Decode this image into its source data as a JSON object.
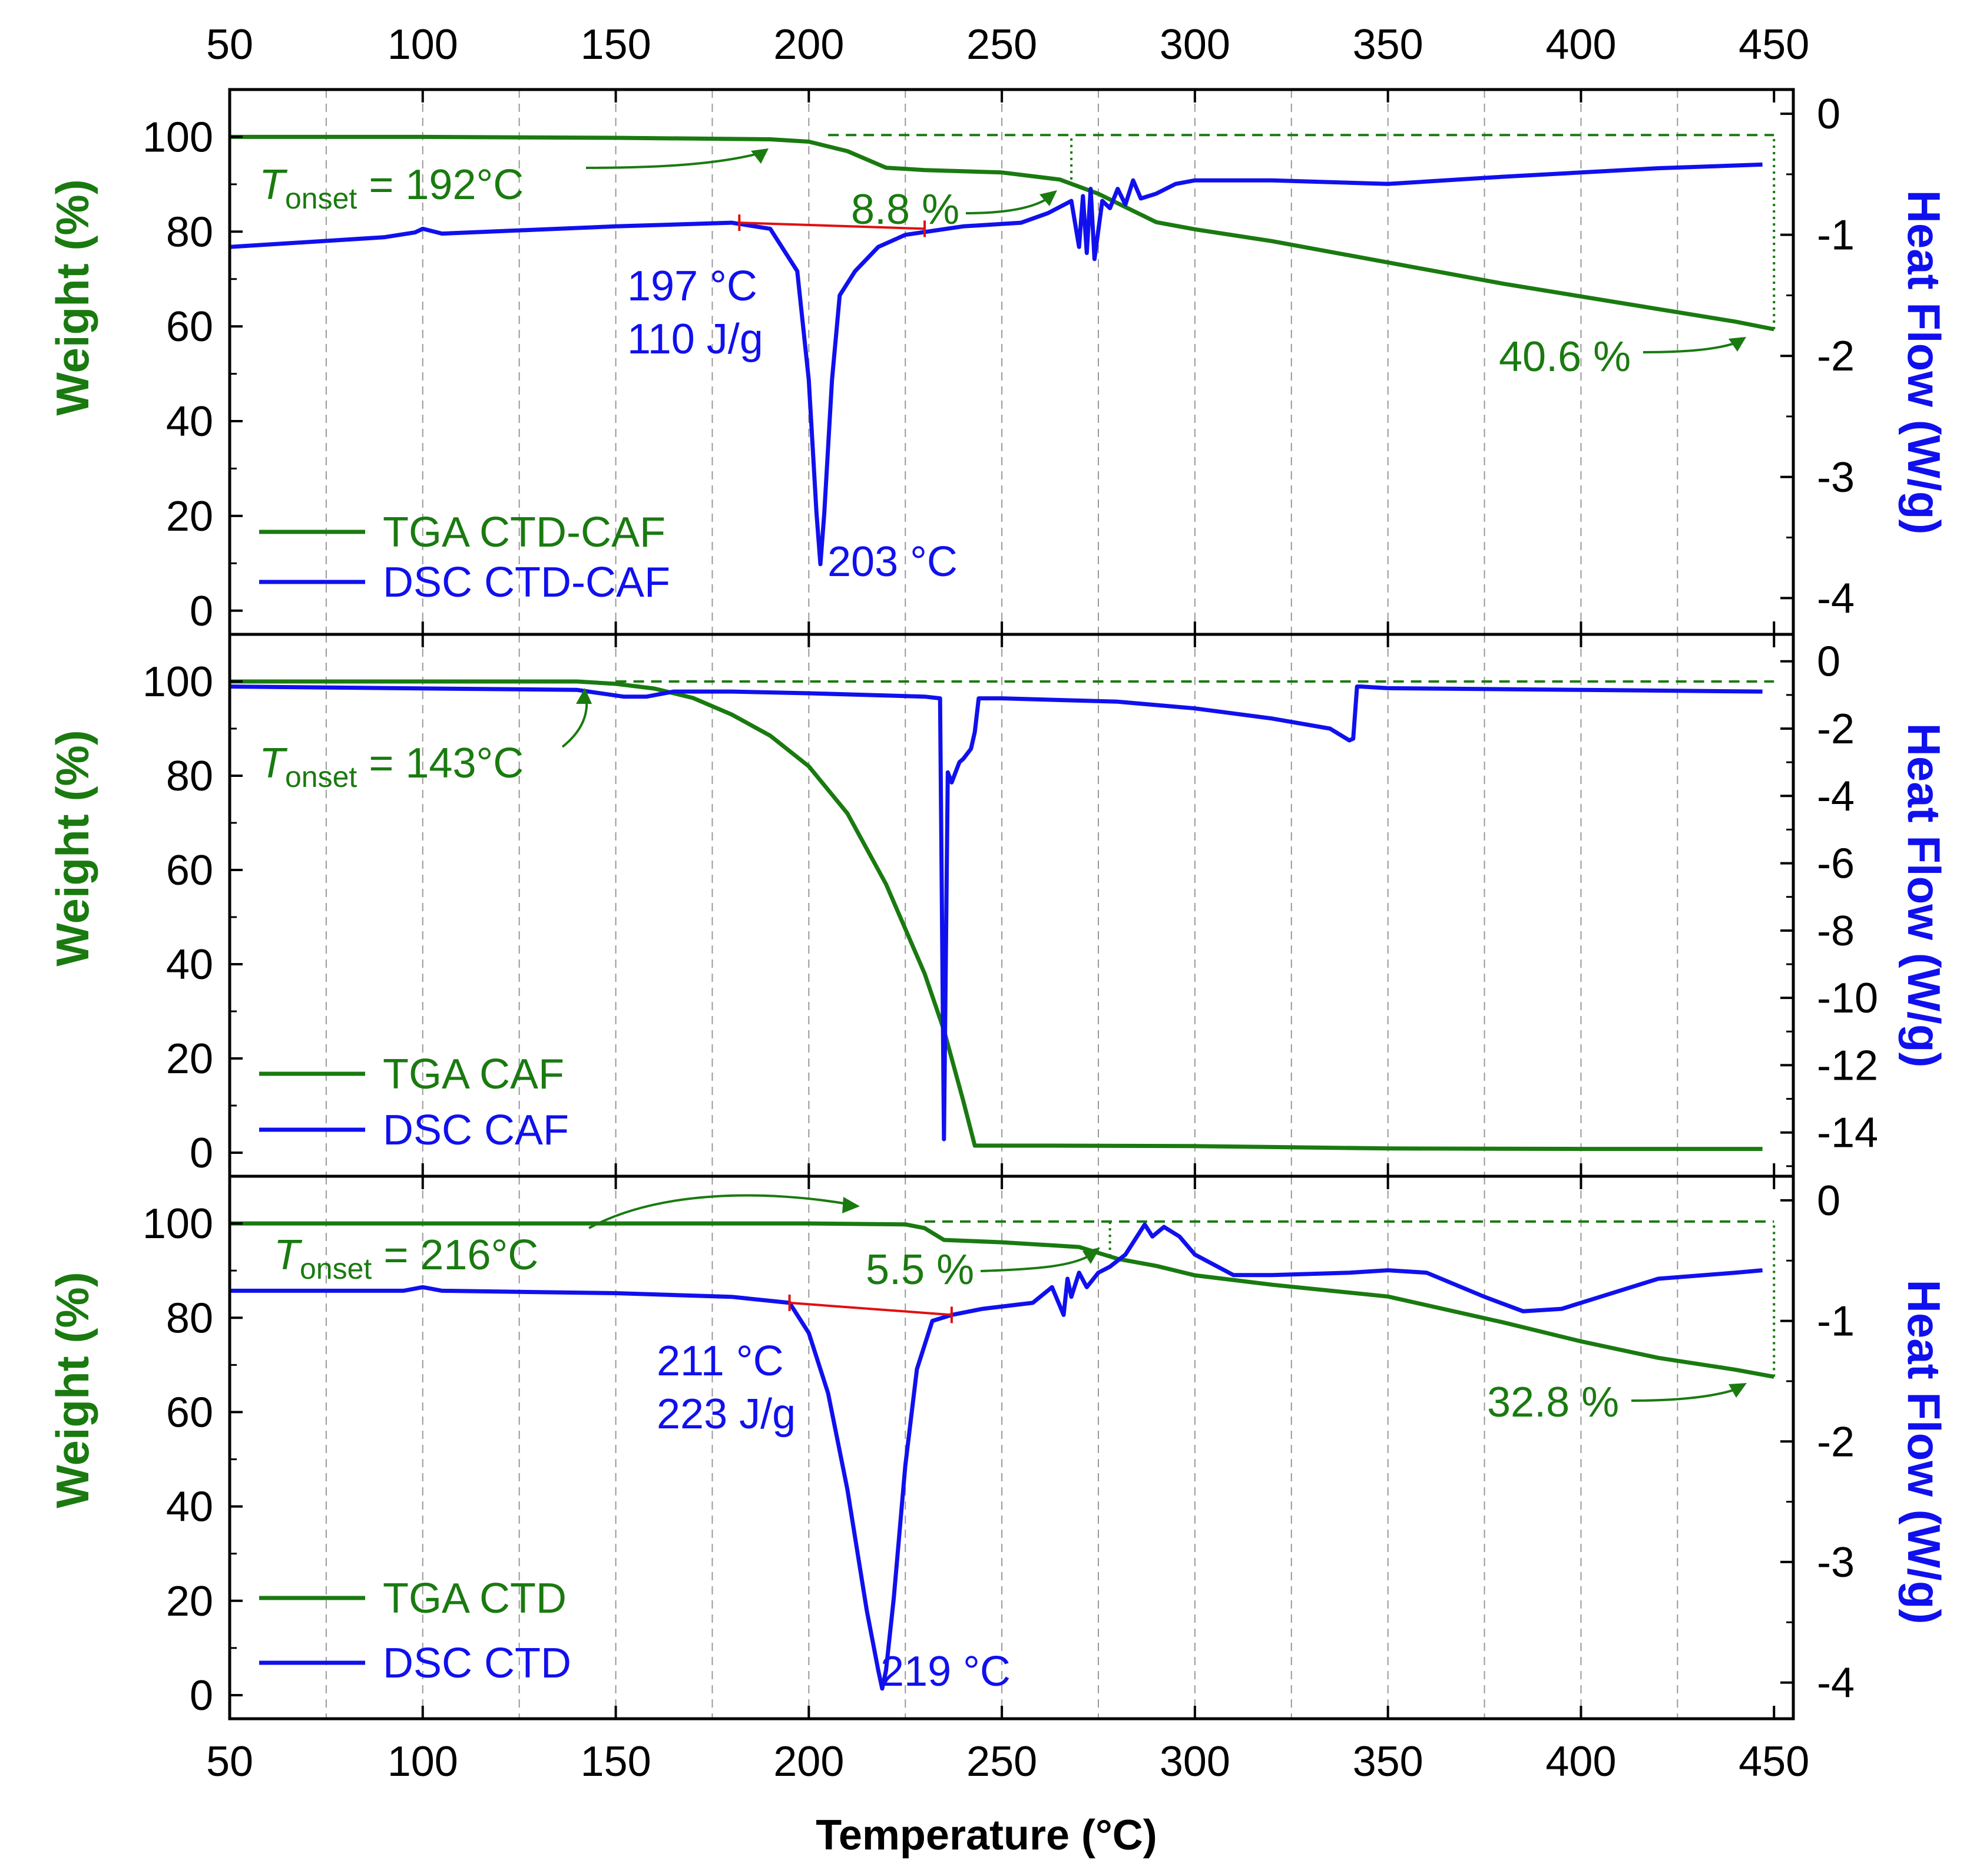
{
  "colors": {
    "tga": "#1a7a10",
    "dsc": "#1010ee",
    "baseline": "#e01010",
    "grid": "#999999",
    "axis": "#000000"
  },
  "x_axis": {
    "label": "Temperature (°C)",
    "range": [
      50,
      455
    ],
    "ticks": [
      50,
      100,
      150,
      200,
      250,
      300,
      350,
      400,
      450
    ],
    "tick_labels": [
      "50",
      "100",
      "150",
      "200",
      "250",
      "300",
      "350",
      "400",
      "450"
    ]
  },
  "chart_data": [
    {
      "type": "line",
      "panel": "top",
      "ylabel_left": "Weight (%)",
      "ylabel_right": "Heat Flow (W/g)",
      "ylim_left": [
        -5,
        110
      ],
      "ylim_right": [
        -4.3,
        0.2
      ],
      "left_ticks": [
        0,
        20,
        40,
        60,
        80,
        100
      ],
      "left_tick_labels": [
        "0",
        "20",
        "40",
        "60",
        "80",
        "100"
      ],
      "right_ticks": [
        0,
        -1,
        -2,
        -3,
        -4
      ],
      "right_tick_labels": [
        "0",
        "-1",
        "-2",
        "-3",
        "-4"
      ],
      "series": [
        {
          "name": "TGA CTD-CAF",
          "axis": "left",
          "x": [
            50,
            100,
            150,
            190,
            200,
            210,
            220,
            230,
            250,
            265,
            275,
            290,
            300,
            320,
            350,
            380,
            410,
            440,
            450
          ],
          "y": [
            100,
            100,
            99.8,
            99.5,
            99,
            97,
            93.5,
            93,
            92.5,
            91,
            88,
            82,
            80.5,
            78,
            73.5,
            69,
            65,
            61,
            59.4
          ]
        },
        {
          "name": "DSC CTD-CAF",
          "axis": "right",
          "x": [
            50,
            90,
            98,
            100,
            105,
            150,
            180,
            190,
            197,
            200,
            202,
            203,
            204,
            206,
            208,
            212,
            218,
            225,
            240,
            255,
            262,
            268,
            270,
            271,
            272,
            273,
            274,
            276,
            278,
            280,
            282,
            284,
            286,
            290,
            295,
            300,
            320,
            350,
            380,
            420,
            447
          ],
          "y": [
            -1.1,
            -1.02,
            -0.98,
            -0.95,
            -0.99,
            -0.93,
            -0.9,
            -0.95,
            -1.3,
            -2.2,
            -3.3,
            -3.72,
            -3.3,
            -2.2,
            -1.5,
            -1.3,
            -1.1,
            -1.0,
            -0.93,
            -0.9,
            -0.82,
            -0.72,
            -1.1,
            -0.68,
            -1.15,
            -0.62,
            -1.2,
            -0.72,
            -0.78,
            -0.62,
            -0.75,
            -0.55,
            -0.7,
            -0.66,
            -0.58,
            -0.55,
            -0.55,
            -0.58,
            -0.52,
            -0.45,
            -0.42
          ]
        }
      ],
      "baseline": {
        "x": [
          182,
          230
        ],
        "y": [
          -0.9,
          -0.95
        ]
      },
      "onset_line": {
        "y": 100.4,
        "x": [
          205,
          450
        ]
      },
      "drop_lines": [
        {
          "x": 268,
          "y": [
            91,
            100.4
          ]
        },
        {
          "x": 450,
          "y": [
            59.4,
            100.4
          ]
        }
      ],
      "annotations": {
        "tonset_prefix": "T",
        "tonset_sub": "onset",
        "tonset_value": " = 192°C",
        "loss1": "8.8 %",
        "loss2": "40.6 %",
        "peak_onset": "197 °C",
        "enthalpy": "110 J/g",
        "peak": "203 °C"
      }
    },
    {
      "type": "line",
      "panel": "middle",
      "ylabel_left": "Weight (%)",
      "ylabel_right": "Heat Flow (W/g)",
      "ylim_left": [
        -5,
        110
      ],
      "ylim_right": [
        -15.3,
        0.8
      ],
      "left_ticks": [
        0,
        20,
        40,
        60,
        80,
        100
      ],
      "left_tick_labels": [
        "0",
        "20",
        "40",
        "60",
        "80",
        "100"
      ],
      "right_ticks": [
        0,
        -2,
        -4,
        -6,
        -8,
        -10,
        -12,
        -14
      ],
      "right_tick_labels": [
        "0",
        "-2",
        "-4",
        "-6",
        "-8",
        "-10",
        "-12",
        "-14"
      ],
      "series": [
        {
          "name": "TGA CAF",
          "axis": "left",
          "x": [
            50,
            100,
            140,
            150,
            160,
            170,
            180,
            190,
            200,
            210,
            220,
            230,
            235,
            240,
            243,
            260,
            300,
            350,
            400,
            447
          ],
          "y": [
            100,
            100,
            100,
            99.5,
            98.5,
            96.5,
            93,
            88.5,
            82,
            72,
            57,
            38,
            26,
            11,
            1.5,
            1.5,
            1.4,
            0.9,
            0.8,
            0.8
          ]
        },
        {
          "name": "DSC CAF",
          "axis": "right",
          "x": [
            50,
            140,
            152,
            158,
            165,
            180,
            200,
            230,
            234,
            235,
            236,
            237,
            239,
            240,
            242,
            243,
            244,
            250,
            280,
            300,
            320,
            335,
            340,
            341,
            342,
            343,
            350,
            400,
            447
          ],
          "y": [
            -0.75,
            -0.85,
            -1.05,
            -1.05,
            -0.9,
            -0.9,
            -0.95,
            -1.05,
            -1.1,
            -14.2,
            -3.3,
            -3.6,
            -3.0,
            -2.9,
            -2.6,
            -2.1,
            -1.1,
            -1.1,
            -1.2,
            -1.4,
            -1.7,
            -2.0,
            -2.35,
            -2.3,
            -0.75,
            -0.75,
            -0.8,
            -0.85,
            -0.9
          ]
        }
      ],
      "onset_line": {
        "y": 100,
        "x": [
          150,
          450
        ]
      },
      "annotations": {
        "tonset_prefix": "T",
        "tonset_sub": "onset",
        "tonset_value": " = 143°C"
      }
    },
    {
      "type": "line",
      "panel": "bottom",
      "ylabel_left": "Weight (%)",
      "ylabel_right": "Heat Flow (W/g)",
      "ylim_left": [
        -5,
        110
      ],
      "ylim_right": [
        -4.3,
        0.2
      ],
      "left_ticks": [
        0,
        20,
        40,
        60,
        80,
        100
      ],
      "left_tick_labels": [
        "0",
        "20",
        "40",
        "60",
        "80",
        "100"
      ],
      "right_ticks": [
        0,
        -1,
        -2,
        -3,
        -4
      ],
      "right_tick_labels": [
        "0",
        "-1",
        "-2",
        "-3",
        "-4"
      ],
      "series": [
        {
          "name": "TGA CTD",
          "axis": "left",
          "x": [
            50,
            100,
            150,
            200,
            225,
            230,
            235,
            250,
            270,
            280,
            290,
            300,
            320,
            350,
            380,
            400,
            420,
            440,
            450
          ],
          "y": [
            100,
            100,
            100,
            100,
            99.8,
            99,
            96.5,
            96,
            95,
            92.5,
            91,
            89,
            87,
            84.5,
            79,
            75,
            71.5,
            69,
            67.5
          ]
        },
        {
          "name": "DSC CTD",
          "axis": "right",
          "x": [
            50,
            95,
            100,
            105,
            150,
            180,
            195,
            200,
            205,
            210,
            215,
            218,
            219,
            220,
            222,
            225,
            228,
            232,
            237,
            245,
            258,
            263,
            266,
            267,
            268,
            270,
            272,
            275,
            278,
            282,
            285,
            287,
            289,
            292,
            296,
            300,
            310,
            320,
            340,
            350,
            360,
            375,
            385,
            395,
            405,
            420,
            440,
            447
          ],
          "y": [
            -0.75,
            -0.75,
            -0.72,
            -0.75,
            -0.77,
            -0.8,
            -0.85,
            -1.1,
            -1.6,
            -2.4,
            -3.4,
            -3.9,
            -4.05,
            -3.9,
            -3.3,
            -2.2,
            -1.4,
            -1.0,
            -0.95,
            -0.9,
            -0.85,
            -0.72,
            -0.95,
            -0.65,
            -0.8,
            -0.6,
            -0.72,
            -0.6,
            -0.55,
            -0.45,
            -0.3,
            -0.2,
            -0.3,
            -0.22,
            -0.3,
            -0.45,
            -0.62,
            -0.62,
            -0.6,
            -0.58,
            -0.6,
            -0.8,
            -0.92,
            -0.9,
            -0.8,
            -0.65,
            -0.6,
            -0.58
          ]
        }
      ],
      "baseline": {
        "x": [
          195,
          237
        ],
        "y": [
          -0.85,
          -0.95
        ]
      },
      "onset_line": {
        "y": 100.4,
        "x": [
          230,
          450
        ]
      },
      "drop_lines": [
        {
          "x": 278,
          "y": [
            93,
            100.4
          ]
        },
        {
          "x": 450,
          "y": [
            67.5,
            100.4
          ]
        }
      ],
      "annotations": {
        "tonset_prefix": "T",
        "tonset_sub": "onset",
        "tonset_value": " = 216°C",
        "loss1": "5.5 %",
        "loss2": "32.8 %",
        "peak_onset": "211 °C",
        "enthalpy": "223 J/g",
        "peak": "219 °C"
      }
    }
  ]
}
